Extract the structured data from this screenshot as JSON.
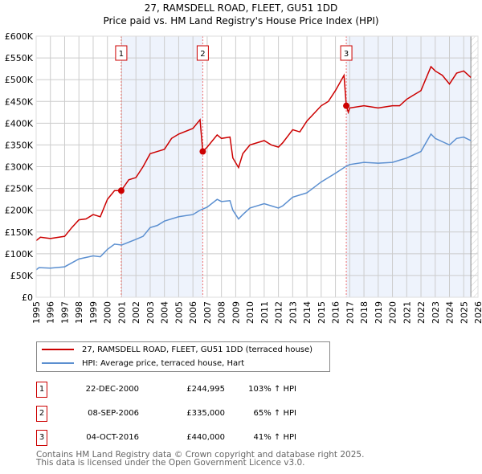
{
  "title": "27, RAMSDELL ROAD, FLEET, GU51 1DD",
  "subtitle": "Price paid vs. HM Land Registry's House Price Index (HPI)",
  "colors": {
    "property": "#cc0000",
    "hpi": "#5b8fd0",
    "shade": "#eef3fc",
    "grid": "#cccccc"
  },
  "chart_data": {
    "type": "line",
    "title": "27, RAMSDELL ROAD, FLEET, GU51 1DD — Price paid vs. HM Land Registry's House Price Index (HPI)",
    "xlim": [
      1995,
      2026
    ],
    "ylim": [
      0,
      600000
    ],
    "x_ticks": [
      "1995",
      "1996",
      "1997",
      "1998",
      "1999",
      "2000",
      "2001",
      "2002",
      "2003",
      "2004",
      "2005",
      "2006",
      "2007",
      "2008",
      "2009",
      "2010",
      "2011",
      "2012",
      "2013",
      "2014",
      "2015",
      "2016",
      "2017",
      "2018",
      "2019",
      "2020",
      "2021",
      "2022",
      "2023",
      "2024",
      "2025",
      "2026"
    ],
    "y_ticks": [
      {
        "v": 0,
        "label": "£0"
      },
      {
        "v": 50000,
        "label": "£50K"
      },
      {
        "v": 100000,
        "label": "£100K"
      },
      {
        "v": 150000,
        "label": "£150K"
      },
      {
        "v": 200000,
        "label": "£200K"
      },
      {
        "v": 250000,
        "label": "£250K"
      },
      {
        "v": 300000,
        "label": "£300K"
      },
      {
        "v": 350000,
        "label": "£350K"
      },
      {
        "v": 400000,
        "label": "£400K"
      },
      {
        "v": 450000,
        "label": "£450K"
      },
      {
        "v": 500000,
        "label": "£500K"
      },
      {
        "v": 550000,
        "label": "£550K"
      },
      {
        "v": 600000,
        "label": "£600K"
      }
    ],
    "grid": true,
    "shaded_ranges": [
      [
        2000.97,
        2006.69
      ],
      [
        2016.76,
        2025.5
      ]
    ],
    "hatched_from": 2025.5,
    "series": [
      {
        "name": "27, RAMSDELL ROAD, FLEET, GU51 1DD (terraced house)",
        "color": "#cc0000",
        "points": [
          [
            1995,
            130000
          ],
          [
            1995.3,
            138000
          ],
          [
            1996,
            135000
          ],
          [
            1997,
            140000
          ],
          [
            1997.5,
            160000
          ],
          [
            1998,
            178000
          ],
          [
            1998.5,
            180000
          ],
          [
            1999,
            190000
          ],
          [
            1999.5,
            185000
          ],
          [
            2000,
            225000
          ],
          [
            2000.5,
            245000
          ],
          [
            2000.97,
            244995
          ],
          [
            2001.5,
            270000
          ],
          [
            2002,
            275000
          ],
          [
            2002.5,
            300000
          ],
          [
            2003,
            330000
          ],
          [
            2003.5,
            335000
          ],
          [
            2004,
            340000
          ],
          [
            2004.5,
            365000
          ],
          [
            2005,
            375000
          ],
          [
            2006,
            388000
          ],
          [
            2006.5,
            408000
          ],
          [
            2006.69,
            335000
          ],
          [
            2007,
            345000
          ],
          [
            2007.7,
            373000
          ],
          [
            2008,
            365000
          ],
          [
            2008.6,
            368000
          ],
          [
            2008.8,
            320000
          ],
          [
            2009.2,
            298000
          ],
          [
            2009.5,
            330000
          ],
          [
            2010,
            350000
          ],
          [
            2011,
            360000
          ],
          [
            2011.5,
            350000
          ],
          [
            2012,
            345000
          ],
          [
            2012.3,
            355000
          ],
          [
            2013,
            385000
          ],
          [
            2013.5,
            380000
          ],
          [
            2014,
            405000
          ],
          [
            2015,
            440000
          ],
          [
            2015.5,
            450000
          ],
          [
            2016,
            475000
          ],
          [
            2016.6,
            510000
          ],
          [
            2016.76,
            440000
          ],
          [
            2016.9,
            425000
          ],
          [
            2017,
            435000
          ],
          [
            2018,
            440000
          ],
          [
            2019,
            435000
          ],
          [
            2020,
            440000
          ],
          [
            2020.5,
            440000
          ],
          [
            2021,
            455000
          ],
          [
            2022,
            475000
          ],
          [
            2022.7,
            530000
          ],
          [
            2023,
            520000
          ],
          [
            2023.5,
            510000
          ],
          [
            2024,
            490000
          ],
          [
            2024.5,
            515000
          ],
          [
            2025,
            520000
          ],
          [
            2025.5,
            505000
          ]
        ]
      },
      {
        "name": "HPI: Average price, terraced house, Hart",
        "color": "#5b8fd0",
        "points": [
          [
            1995,
            63000
          ],
          [
            1995.2,
            68000
          ],
          [
            1996,
            67000
          ],
          [
            1997,
            70000
          ],
          [
            1998,
            88000
          ],
          [
            1999,
            95000
          ],
          [
            1999.5,
            93000
          ],
          [
            2000,
            110000
          ],
          [
            2000.5,
            122000
          ],
          [
            2001,
            120000
          ],
          [
            2002,
            133000
          ],
          [
            2002.5,
            140000
          ],
          [
            2003,
            160000
          ],
          [
            2003.5,
            165000
          ],
          [
            2004,
            175000
          ],
          [
            2005,
            185000
          ],
          [
            2006,
            190000
          ],
          [
            2006.5,
            200000
          ],
          [
            2007,
            207000
          ],
          [
            2007.7,
            225000
          ],
          [
            2008,
            220000
          ],
          [
            2008.6,
            222000
          ],
          [
            2008.8,
            200000
          ],
          [
            2009.2,
            180000
          ],
          [
            2009.5,
            190000
          ],
          [
            2010,
            205000
          ],
          [
            2011,
            215000
          ],
          [
            2011.5,
            210000
          ],
          [
            2012,
            205000
          ],
          [
            2012.3,
            210000
          ],
          [
            2013,
            230000
          ],
          [
            2014,
            240000
          ],
          [
            2015,
            265000
          ],
          [
            2016,
            285000
          ],
          [
            2016.7,
            300000
          ],
          [
            2017,
            305000
          ],
          [
            2018,
            310000
          ],
          [
            2019,
            308000
          ],
          [
            2020,
            310000
          ],
          [
            2020.5,
            315000
          ],
          [
            2021,
            320000
          ],
          [
            2022,
            335000
          ],
          [
            2022.7,
            375000
          ],
          [
            2023,
            365000
          ],
          [
            2024,
            350000
          ],
          [
            2024.5,
            365000
          ],
          [
            2025,
            368000
          ],
          [
            2025.5,
            360000
          ]
        ]
      }
    ],
    "sales": [
      {
        "label": "1",
        "x": 2000.97,
        "y": 244995
      },
      {
        "label": "2",
        "x": 2006.69,
        "y": 335000
      },
      {
        "label": "3",
        "x": 2016.76,
        "y": 440000
      }
    ],
    "legend_position": "bottom"
  },
  "legend": {
    "property": "27, RAMSDELL ROAD, FLEET, GU51 1DD (terraced house)",
    "hpi": "HPI: Average price, terraced house, Hart"
  },
  "transactions": [
    {
      "num": "1",
      "date": "22-DEC-2000",
      "price": "£244,995",
      "hpi": "103% ↑ HPI"
    },
    {
      "num": "2",
      "date": "08-SEP-2006",
      "price": "£335,000",
      "hpi": "65% ↑ HPI"
    },
    {
      "num": "3",
      "date": "04-OCT-2016",
      "price": "£440,000",
      "hpi": "41% ↑ HPI"
    }
  ],
  "footer": {
    "line1": "Contains HM Land Registry data © Crown copyright and database right 2025.",
    "line2": "This data is licensed under the Open Government Licence v3.0."
  }
}
